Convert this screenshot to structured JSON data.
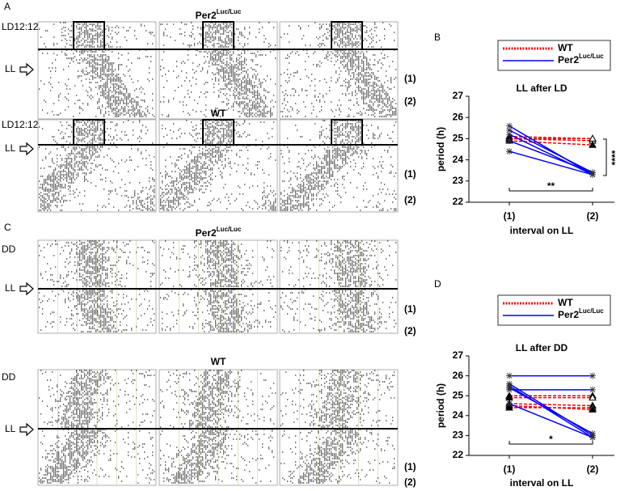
{
  "panel_labels": [
    "A",
    "B",
    "C",
    "D"
  ],
  "actograms": {
    "A": {
      "groups": [
        {
          "title": "Per2",
          "title_sup": "Luc/Luc",
          "first": "LD12:12",
          "second": "LL"
        },
        {
          "title": "WT",
          "first": "LD12:12",
          "second": "LL"
        }
      ],
      "intervals": [
        "(1)",
        "(2)"
      ]
    },
    "C": {
      "groups": [
        {
          "title": "Per2",
          "title_sup": "Luc/Luc",
          "first": "DD",
          "second": "LL"
        },
        {
          "title": "WT",
          "first": "DD",
          "second": "LL"
        }
      ],
      "intervals": [
        "(1)",
        "(2)"
      ]
    }
  },
  "chart_data": [
    {
      "type": "line",
      "title": "LL after LD",
      "xlabel": "interval on LL",
      "ylabel": "period (h)",
      "categories": [
        "(1)",
        "(2)"
      ],
      "ylim": [
        22,
        27
      ],
      "yticks": [
        22,
        23,
        24,
        25,
        26,
        27
      ],
      "series": [
        {
          "name": "WT",
          "color": "#ff0000",
          "dashed": true,
          "marker": "triangle",
          "lines": [
            [
              25.1,
              25.0
            ],
            [
              25.0,
              24.9
            ],
            [
              24.9,
              24.7
            ],
            [
              25.0,
              25.0
            ]
          ]
        },
        {
          "name": "Per2",
          "name_sup": "Luc/Luc",
          "color": "#0000ff",
          "dashed": false,
          "marker": "asterisk",
          "lines": [
            [
              25.6,
              23.3
            ],
            [
              25.4,
              23.4
            ],
            [
              25.2,
              23.3
            ],
            [
              24.9,
              23.4
            ],
            [
              24.4,
              23.3
            ]
          ]
        }
      ],
      "annotations": [
        "**",
        "****"
      ]
    },
    {
      "type": "line",
      "title": "LL after DD",
      "xlabel": "interval on LL",
      "ylabel": "period (h)",
      "categories": [
        "(1)",
        "(2)"
      ],
      "ylim": [
        22,
        27
      ],
      "yticks": [
        22,
        23,
        24,
        25,
        26,
        27
      ],
      "series": [
        {
          "name": "WT",
          "color": "#ff0000",
          "dashed": true,
          "marker": "triangle",
          "lines": [
            [
              25.0,
              25.0
            ],
            [
              24.9,
              24.9
            ],
            [
              24.6,
              24.5
            ],
            [
              24.4,
              24.4
            ],
            [
              24.5,
              24.3
            ]
          ]
        },
        {
          "name": "Per2",
          "name_sup": "Luc/Luc",
          "color": "#0000ff",
          "dashed": false,
          "marker": "asterisk",
          "lines": [
            [
              26.0,
              26.0
            ],
            [
              25.3,
              25.3
            ],
            [
              25.6,
              23.0
            ],
            [
              25.5,
              22.9
            ],
            [
              25.4,
              23.1
            ],
            [
              24.6,
              22.9
            ]
          ]
        }
      ],
      "annotations": [
        "*"
      ]
    }
  ]
}
